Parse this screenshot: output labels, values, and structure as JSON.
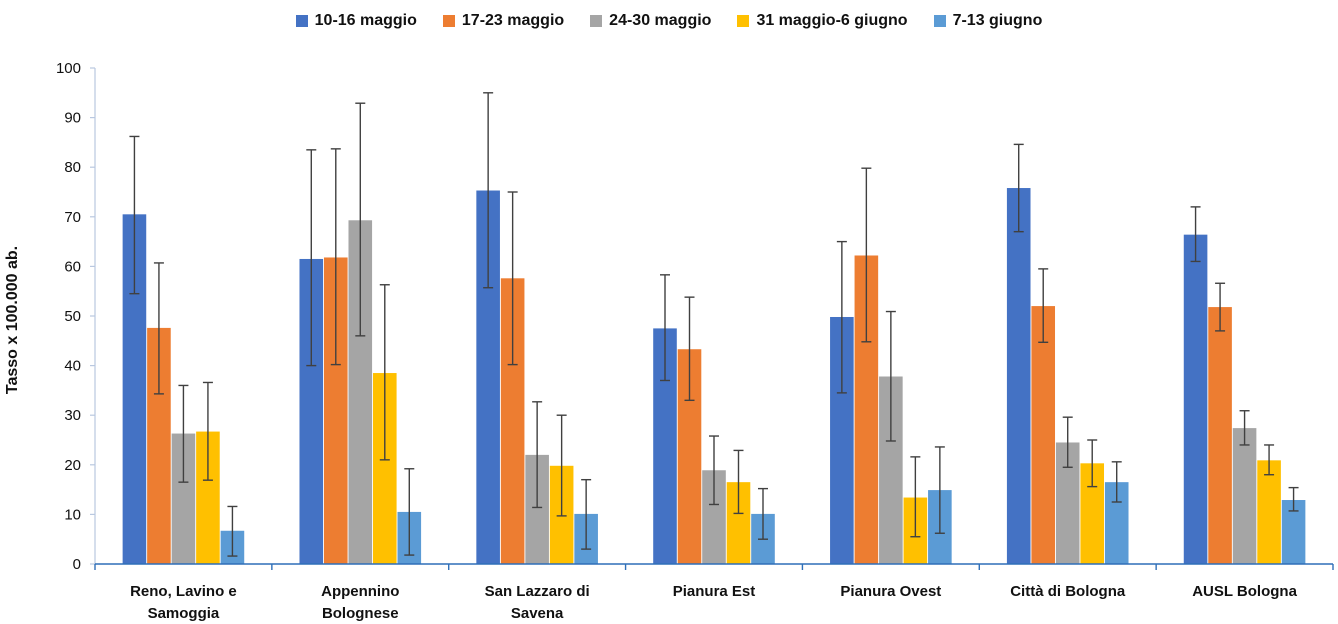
{
  "chart_data": {
    "type": "bar",
    "title": "",
    "ylabel": "Tasso x 100.000 ab.",
    "xlabel": "",
    "ylim": [
      0,
      100
    ],
    "yticks": [
      0,
      10,
      20,
      30,
      40,
      50,
      60,
      70,
      80,
      90,
      100
    ],
    "grid": false,
    "legend_position": "top-center",
    "error_bars": true,
    "categories": [
      [
        "Reno, Lavino e",
        "Samoggia"
      ],
      [
        "Appennino",
        "Bolognese"
      ],
      [
        "San Lazzaro di",
        "Savena"
      ],
      [
        "Pianura Est"
      ],
      [
        "Pianura Ovest"
      ],
      [
        "Città di Bologna"
      ],
      [
        "AUSL Bologna"
      ]
    ],
    "series": [
      {
        "name": "10-16 maggio",
        "color": "#4472C4",
        "values": [
          70.5,
          61.5,
          75.3,
          47.5,
          49.8,
          75.8,
          66.4
        ],
        "error_low": [
          54.5,
          40.0,
          55.7,
          37.0,
          34.5,
          67.0,
          61.0
        ],
        "error_high": [
          86.2,
          83.5,
          95.0,
          58.3,
          65.0,
          84.6,
          72.0
        ]
      },
      {
        "name": "17-23 maggio",
        "color": "#ED7D31",
        "values": [
          47.6,
          61.8,
          57.6,
          43.3,
          62.2,
          52.0,
          51.8
        ],
        "error_low": [
          34.3,
          40.2,
          40.2,
          33.0,
          44.8,
          44.7,
          47.0
        ],
        "error_high": [
          60.7,
          83.7,
          75.0,
          53.8,
          79.8,
          59.5,
          56.6
        ]
      },
      {
        "name": "24-30 maggio",
        "color": "#A5A5A5",
        "values": [
          26.3,
          69.3,
          22.0,
          18.9,
          37.8,
          24.5,
          27.4
        ],
        "error_low": [
          16.5,
          46.0,
          11.4,
          12.0,
          24.8,
          19.5,
          24.0
        ],
        "error_high": [
          36.0,
          92.9,
          32.7,
          25.8,
          50.9,
          29.6,
          30.9
        ]
      },
      {
        "name": "31 maggio-6 giugno",
        "color": "#FFC000",
        "values": [
          26.7,
          38.5,
          19.8,
          16.5,
          13.4,
          20.3,
          20.9
        ],
        "error_low": [
          16.9,
          21.0,
          9.7,
          10.2,
          5.5,
          15.6,
          18.0
        ],
        "error_high": [
          36.6,
          56.3,
          30.0,
          22.9,
          21.6,
          25.0,
          24.0
        ]
      },
      {
        "name": "7-13 giugno",
        "color": "#5B9BD5",
        "values": [
          6.7,
          10.5,
          10.1,
          10.1,
          14.9,
          16.5,
          12.9
        ],
        "error_low": [
          1.6,
          1.8,
          3.0,
          5.0,
          6.2,
          12.5,
          10.7
        ],
        "error_high": [
          11.6,
          19.2,
          17.0,
          15.2,
          23.6,
          20.6,
          15.4
        ]
      }
    ]
  }
}
